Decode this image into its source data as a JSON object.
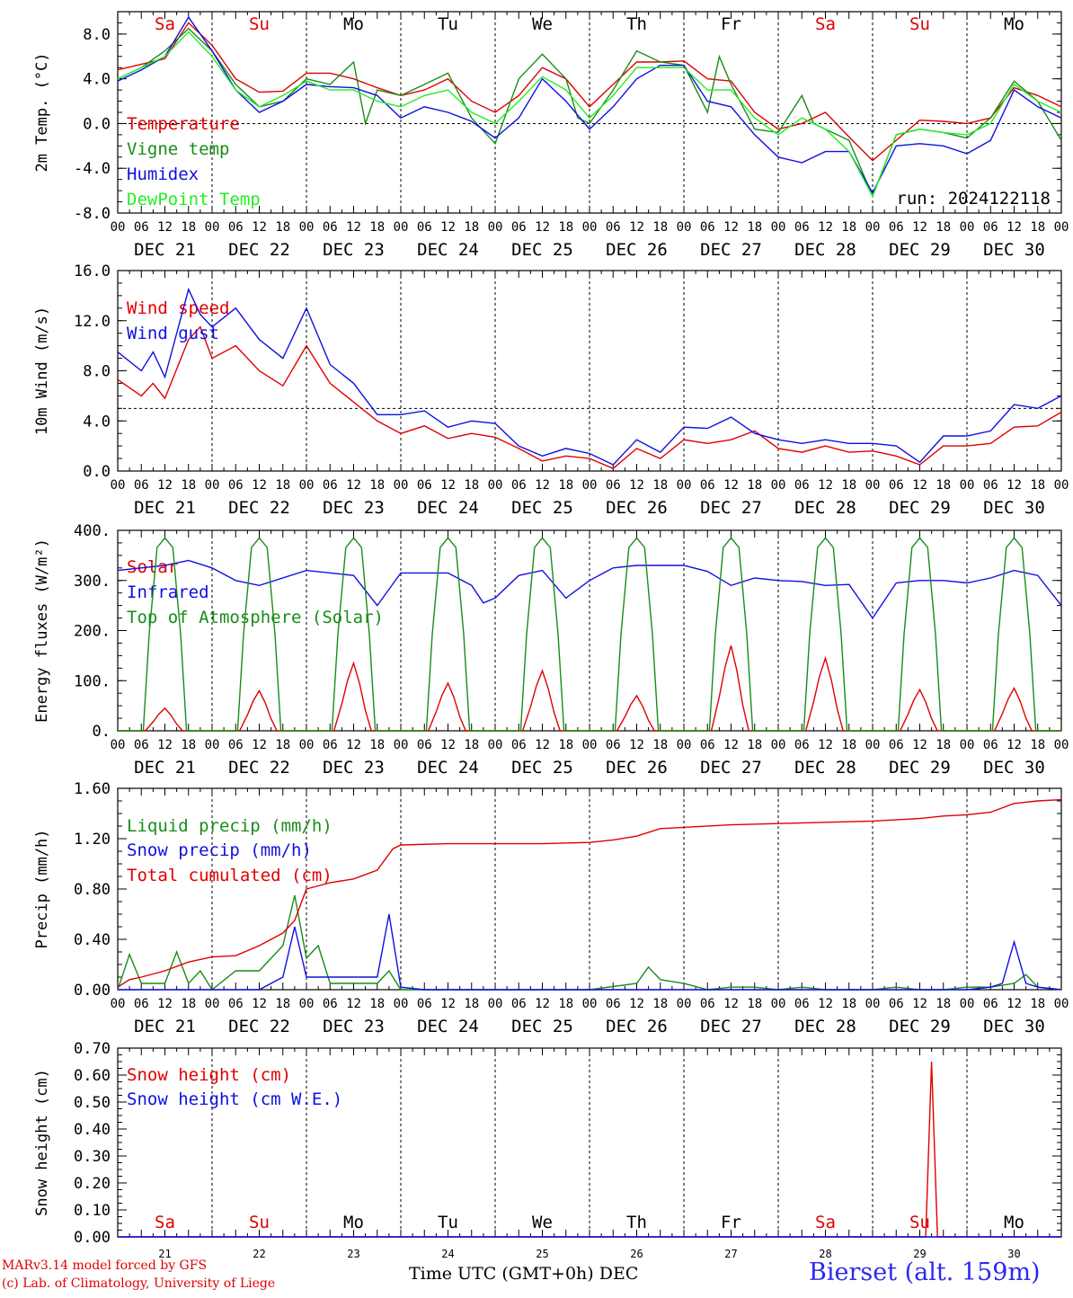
{
  "run_label": "run: 2024122118",
  "footer": {
    "credit_line1": "MARv3.14 model forced by GFS",
    "credit_line2": "(c) Lab. of Climatology, University of Liege",
    "xaxis_title": "Time UTC (GMT+0h) DEC",
    "station": "Bierset (alt. 159m)"
  },
  "colors": {
    "red": "#e00000",
    "green": "#1a8c1a",
    "blue": "#1010e0",
    "lightgreen": "#22ee22",
    "weekend": "#e00000",
    "weekday": "#000000"
  },
  "days": [
    {
      "abbr": "Sa",
      "date": "DEC 21",
      "num": "21",
      "weekend": true
    },
    {
      "abbr": "Su",
      "date": "DEC 22",
      "num": "22",
      "weekend": true
    },
    {
      "abbr": "Mo",
      "date": "DEC 23",
      "num": "23",
      "weekend": false
    },
    {
      "abbr": "Tu",
      "date": "DEC 24",
      "num": "24",
      "weekend": false
    },
    {
      "abbr": "We",
      "date": "DEC 25",
      "num": "25",
      "weekend": false
    },
    {
      "abbr": "Th",
      "date": "DEC 26",
      "num": "26",
      "weekend": false
    },
    {
      "abbr": "Fr",
      "date": "DEC 27",
      "num": "27",
      "weekend": false
    },
    {
      "abbr": "Sa",
      "date": "DEC 28",
      "num": "28",
      "weekend": true
    },
    {
      "abbr": "Su",
      "date": "DEC 29",
      "num": "29",
      "weekend": true
    },
    {
      "abbr": "Mo",
      "date": "DEC 30",
      "num": "30",
      "weekend": false
    }
  ],
  "hour_ticks": [
    "00",
    "06",
    "12",
    "18"
  ],
  "chart_data": [
    {
      "type": "line",
      "ylabel": "2m Temp. (°C)",
      "ylim": [
        -8,
        10
      ],
      "yticks": [
        "-8.0",
        "-4.0",
        "0.0",
        "4.0",
        "8.0"
      ],
      "ytick_values": [
        -8,
        -4,
        0,
        4,
        8
      ],
      "reference_line": 0,
      "xlim_hours": [
        0,
        240
      ],
      "series": [
        {
          "name": "Temperature",
          "color": "#e00000",
          "x": [
            0,
            12,
            18,
            24,
            30,
            36,
            42,
            48,
            54,
            60,
            66,
            72,
            78,
            84,
            90,
            96,
            102,
            108,
            114,
            120,
            126,
            132,
            138,
            144,
            150,
            156,
            162,
            168,
            174,
            180,
            186,
            192,
            198,
            204,
            210,
            216,
            222,
            228,
            234,
            240
          ],
          "values": [
            4.8,
            5.8,
            9.0,
            7.0,
            4.0,
            2.8,
            2.9,
            4.5,
            4.5,
            4.0,
            3.2,
            2.5,
            3.0,
            4.0,
            2.0,
            1.0,
            2.5,
            5.0,
            4.0,
            1.5,
            3.5,
            5.5,
            5.5,
            5.6,
            4.0,
            3.8,
            1.0,
            -0.5,
            0.0,
            1.0,
            -1.2,
            -3.3,
            -1.5,
            0.3,
            0.2,
            0.0,
            0.5,
            3.2,
            2.5,
            1.5
          ]
        },
        {
          "name": "Vigne temp",
          "color": "#1a8c1a",
          "x": [
            0,
            6,
            12,
            18,
            24,
            30,
            36,
            42,
            48,
            54,
            60,
            63,
            66,
            72,
            78,
            84,
            90,
            96,
            102,
            108,
            114,
            117,
            120,
            126,
            132,
            138,
            144,
            150,
            153,
            156,
            162,
            168,
            174,
            177,
            180,
            186,
            192,
            198,
            204,
            210,
            216,
            222,
            228,
            234,
            240
          ],
          "values": [
            4.0,
            5.0,
            6.5,
            8.5,
            6.5,
            3.5,
            1.5,
            2.0,
            4.0,
            3.5,
            5.5,
            0.0,
            3.0,
            2.5,
            3.5,
            4.5,
            0.5,
            -1.8,
            4.0,
            6.2,
            4.0,
            0.5,
            0.0,
            3.0,
            6.5,
            5.5,
            5.2,
            1.0,
            6.0,
            3.5,
            -0.5,
            -0.8,
            2.5,
            0.0,
            -0.5,
            -1.5,
            -6.5,
            -1.0,
            -0.5,
            -0.8,
            -1.3,
            0.5,
            3.8,
            2.0,
            -1.5
          ]
        },
        {
          "name": "Humidex",
          "color": "#1010e0",
          "x": [
            0,
            6,
            12,
            18,
            24,
            30,
            36,
            42,
            48,
            54,
            60,
            66,
            72,
            78,
            84,
            90,
            96,
            102,
            108,
            114,
            120,
            126,
            132,
            138,
            144,
            150,
            156,
            162,
            168,
            174,
            180,
            186,
            192,
            198,
            204,
            210,
            216,
            222,
            228,
            234,
            240
          ],
          "values": [
            3.8,
            4.8,
            6.0,
            9.5,
            6.5,
            3.0,
            1.0,
            2.0,
            3.5,
            3.3,
            3.2,
            2.5,
            0.5,
            1.5,
            1.0,
            0.2,
            -1.3,
            0.5,
            4.0,
            2.0,
            -0.5,
            1.5,
            4.0,
            5.2,
            5.2,
            2.0,
            1.5,
            -1.0,
            -3.0,
            -3.5,
            -2.5,
            -2.5,
            -6.2,
            -2.0,
            -1.8,
            -2.0,
            -2.7,
            -1.5,
            3.0,
            1.5,
            0.5
          ]
        },
        {
          "name": "DewPoint Temp",
          "color": "#22ee22",
          "x": [
            0,
            6,
            12,
            18,
            24,
            30,
            36,
            42,
            48,
            54,
            60,
            66,
            72,
            78,
            84,
            90,
            96,
            102,
            108,
            114,
            120,
            126,
            132,
            138,
            144,
            150,
            156,
            162,
            168,
            174,
            180,
            186,
            192,
            198,
            204,
            210,
            216,
            222,
            228,
            234,
            240
          ],
          "values": [
            4.0,
            5.0,
            6.0,
            8.2,
            6.0,
            3.0,
            1.5,
            2.5,
            3.8,
            3.0,
            3.0,
            2.0,
            1.5,
            2.5,
            3.0,
            1.0,
            0.0,
            2.0,
            4.2,
            3.0,
            0.5,
            2.5,
            5.0,
            5.0,
            5.0,
            3.0,
            3.0,
            0.5,
            -1.0,
            0.5,
            -0.5,
            -2.5,
            -6.5,
            -1.0,
            -0.5,
            -0.8,
            -1.0,
            0.0,
            3.5,
            2.0,
            1.0
          ]
        }
      ]
    },
    {
      "type": "line",
      "ylabel": "10m Wind (m/s)",
      "ylim": [
        0,
        16
      ],
      "yticks": [
        "0.0",
        "4.0",
        "8.0",
        "12.0",
        "16.0"
      ],
      "ytick_values": [
        0,
        4,
        8,
        12,
        16
      ],
      "reference_line": 5,
      "xlim_hours": [
        0,
        240
      ],
      "series": [
        {
          "name": "Wind speed",
          "color": "#e00000",
          "x": [
            0,
            6,
            9,
            12,
            18,
            21,
            24,
            30,
            36,
            42,
            48,
            54,
            60,
            66,
            72,
            78,
            84,
            90,
            96,
            102,
            108,
            114,
            120,
            126,
            132,
            138,
            144,
            150,
            156,
            162,
            168,
            174,
            180,
            186,
            192,
            198,
            204,
            210,
            216,
            222,
            228,
            234,
            240
          ],
          "values": [
            7.3,
            6.0,
            7.0,
            5.8,
            10.5,
            11.5,
            9.0,
            10.0,
            8.0,
            6.8,
            10.0,
            7.0,
            5.5,
            4.0,
            3.0,
            3.6,
            2.6,
            3.0,
            2.7,
            1.8,
            0.8,
            1.2,
            1.0,
            0.2,
            1.8,
            1.0,
            2.5,
            2.2,
            2.5,
            3.2,
            1.8,
            1.5,
            2.0,
            1.5,
            1.6,
            1.2,
            0.5,
            2.0,
            2.0,
            2.2,
            3.5,
            3.6,
            4.7
          ]
        },
        {
          "name": "Wind gust",
          "color": "#1010e0",
          "x": [
            0,
            6,
            9,
            12,
            18,
            21,
            24,
            30,
            36,
            42,
            48,
            54,
            60,
            66,
            72,
            78,
            84,
            90,
            96,
            102,
            108,
            114,
            120,
            126,
            132,
            138,
            144,
            150,
            156,
            162,
            168,
            174,
            180,
            186,
            192,
            198,
            204,
            210,
            216,
            222,
            228,
            234,
            240
          ],
          "values": [
            9.5,
            8.0,
            9.5,
            7.5,
            14.5,
            12.5,
            11.5,
            13.0,
            10.5,
            9.0,
            13.0,
            8.5,
            7.0,
            4.5,
            4.5,
            4.8,
            3.5,
            4.0,
            3.8,
            2.0,
            1.2,
            1.8,
            1.4,
            0.5,
            2.5,
            1.5,
            3.5,
            3.4,
            4.3,
            3.0,
            2.5,
            2.2,
            2.5,
            2.2,
            2.2,
            2.0,
            0.7,
            2.8,
            2.8,
            3.2,
            5.3,
            5.0,
            6.0
          ]
        }
      ]
    },
    {
      "type": "line",
      "ylabel": "Energy fluxes (W/m²)",
      "ylim": [
        0,
        400
      ],
      "yticks": [
        "0.",
        "100.",
        "200.",
        "300.",
        "400."
      ],
      "ytick_values": [
        0,
        100,
        200,
        300,
        400
      ],
      "xlim_hours": [
        0,
        240
      ],
      "series": [
        {
          "name": "Solar",
          "color": "#e00000",
          "peak_values": [
            45,
            80,
            135,
            95,
            120,
            70,
            170,
            145,
            82,
            85
          ]
        },
        {
          "name": "Infrared",
          "color": "#1010e0",
          "x": [
            0,
            12,
            18,
            24,
            30,
            36,
            48,
            60,
            66,
            72,
            84,
            90,
            93,
            96,
            102,
            108,
            114,
            120,
            126,
            132,
            144,
            150,
            156,
            162,
            168,
            174,
            180,
            186,
            192,
            198,
            204,
            210,
            216,
            222,
            228,
            234,
            240
          ],
          "values": [
            320,
            330,
            340,
            325,
            300,
            290,
            320,
            310,
            250,
            315,
            315,
            290,
            255,
            265,
            310,
            320,
            265,
            300,
            325,
            330,
            330,
            318,
            290,
            305,
            300,
            298,
            290,
            292,
            225,
            295,
            300,
            300,
            295,
            305,
            320,
            310,
            250
          ]
        },
        {
          "name": "Top of Atmosphere (Solar)",
          "color": "#1a8c1a",
          "peak_values": [
            385,
            385,
            385,
            385,
            385,
            385,
            385,
            385,
            385,
            385
          ]
        }
      ]
    },
    {
      "type": "line",
      "ylabel": "Precip (mm/h)",
      "ylim": [
        0,
        1.6
      ],
      "yticks": [
        "0.00",
        "0.40",
        "0.80",
        "1.20",
        "1.60"
      ],
      "ytick_values": [
        0,
        0.4,
        0.8,
        1.2,
        1.6
      ],
      "xlim_hours": [
        0,
        240
      ],
      "series": [
        {
          "name": "Liquid precip (mm/h)",
          "color": "#1a8c1a",
          "x": [
            0,
            3,
            6,
            9,
            12,
            15,
            18,
            21,
            24,
            30,
            36,
            42,
            45,
            48,
            51,
            54,
            60,
            66,
            69,
            72,
            78,
            120,
            132,
            135,
            138,
            144,
            150,
            156,
            162,
            168,
            174,
            180,
            192,
            198,
            204,
            210,
            216,
            222,
            228,
            231,
            234,
            240
          ],
          "values": [
            0.0,
            0.28,
            0.05,
            0.05,
            0.05,
            0.3,
            0.05,
            0.15,
            0.0,
            0.15,
            0.15,
            0.35,
            0.75,
            0.25,
            0.35,
            0.05,
            0.05,
            0.05,
            0.15,
            0.0,
            0.0,
            0.0,
            0.05,
            0.18,
            0.08,
            0.05,
            0.0,
            0.02,
            0.02,
            0.0,
            0.02,
            0.0,
            0.0,
            0.02,
            0.0,
            0.0,
            0.02,
            0.02,
            0.05,
            0.12,
            0.02,
            0.0
          ]
        },
        {
          "name": "Snow precip (mm/h)",
          "color": "#1010e0",
          "x": [
            0,
            36,
            42,
            45,
            48,
            54,
            60,
            66,
            69,
            72,
            78,
            216,
            222,
            225,
            228,
            231,
            234,
            240
          ],
          "values": [
            0.0,
            0.0,
            0.1,
            0.5,
            0.1,
            0.1,
            0.1,
            0.1,
            0.6,
            0.02,
            0.0,
            0.0,
            0.02,
            0.05,
            0.38,
            0.05,
            0.02,
            0.0
          ]
        },
        {
          "name": "Total cumulated (cm)",
          "color": "#e00000",
          "x": [
            0,
            3,
            6,
            12,
            18,
            24,
            30,
            36,
            42,
            45,
            48,
            54,
            60,
            66,
            70,
            72,
            84,
            96,
            108,
            120,
            126,
            132,
            138,
            144,
            156,
            168,
            180,
            192,
            204,
            210,
            216,
            222,
            228,
            234,
            240
          ],
          "values": [
            0.02,
            0.08,
            0.1,
            0.15,
            0.22,
            0.26,
            0.27,
            0.35,
            0.45,
            0.55,
            0.8,
            0.85,
            0.88,
            0.95,
            1.12,
            1.15,
            1.16,
            1.16,
            1.16,
            1.17,
            1.19,
            1.22,
            1.28,
            1.29,
            1.31,
            1.32,
            1.33,
            1.34,
            1.36,
            1.38,
            1.39,
            1.41,
            1.48,
            1.5,
            1.51
          ]
        }
      ]
    },
    {
      "type": "line",
      "ylabel": "Snow height (cm)",
      "ylim": [
        0,
        0.7
      ],
      "yticks": [
        "0.00",
        "0.10",
        "0.20",
        "0.30",
        "0.40",
        "0.50",
        "0.60",
        "0.70"
      ],
      "ytick_values": [
        0,
        0.1,
        0.2,
        0.3,
        0.4,
        0.5,
        0.6,
        0.7
      ],
      "xlim_hours": [
        0,
        240
      ],
      "series": [
        {
          "name": "Snow height (cm)",
          "color": "#e00000",
          "x": [
            0,
            205.5,
            207,
            208.5,
            240
          ],
          "values": [
            0,
            0,
            0.65,
            0,
            0
          ]
        },
        {
          "name": "Snow height (cm W.E.)",
          "color": "#1010e0",
          "x": [
            0,
            240
          ],
          "values": [
            0,
            0
          ]
        }
      ]
    }
  ]
}
